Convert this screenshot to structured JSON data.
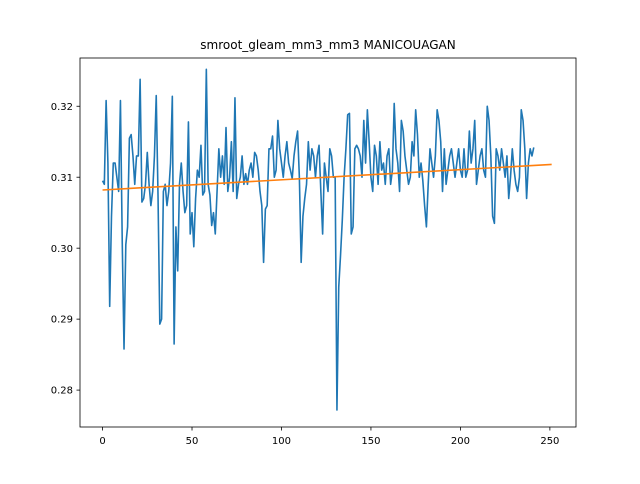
{
  "chart_data": {
    "type": "line",
    "title": "smroot_gleam_mm3_mm3 MANICOUAGAN",
    "xlabel": "",
    "ylabel": "",
    "xlim": [
      -12.6,
      264.6
    ],
    "ylim": [
      0.2748,
      0.3268
    ],
    "x_ticks": [
      0,
      50,
      100,
      150,
      200,
      250
    ],
    "x_tick_labels": [
      "0",
      "50",
      "100",
      "150",
      "200",
      "250"
    ],
    "y_ticks": [
      0.28,
      0.29,
      0.3,
      0.31,
      0.32
    ],
    "y_tick_labels": [
      "0.28",
      "0.29",
      "0.30",
      "0.31",
      "0.32"
    ],
    "grid": false,
    "series": [
      {
        "color": "#1f77b4",
        "x_start": 0,
        "x_step": 1,
        "values": [
          0.3095,
          0.309,
          0.3208,
          0.312,
          0.2918,
          0.3045,
          0.312,
          0.312,
          0.31,
          0.308,
          0.3208,
          0.301,
          0.2858,
          0.3005,
          0.303,
          0.3155,
          0.316,
          0.313,
          0.309,
          0.313,
          0.313,
          0.3238,
          0.3065,
          0.307,
          0.309,
          0.3135,
          0.309,
          0.306,
          0.308,
          0.313,
          0.3215,
          0.3075,
          0.2893,
          0.29,
          0.308,
          0.309,
          0.306,
          0.308,
          0.312,
          0.3214,
          0.2865,
          0.303,
          0.2968,
          0.309,
          0.312,
          0.308,
          0.305,
          0.306,
          0.3178,
          0.302,
          0.305,
          0.3002,
          0.307,
          0.311,
          0.31,
          0.3145,
          0.3075,
          0.308,
          0.3252,
          0.309,
          0.3075,
          0.3032,
          0.305,
          0.302,
          0.308,
          0.314,
          0.31,
          0.313,
          0.309,
          0.317,
          0.308,
          0.31,
          0.315,
          0.308,
          0.3212,
          0.307,
          0.309,
          0.31,
          0.313,
          0.309,
          0.3105,
          0.309,
          0.311,
          0.312,
          0.31,
          0.3135,
          0.313,
          0.311,
          0.308,
          0.306,
          0.298,
          0.3055,
          0.306,
          0.314,
          0.314,
          0.3158,
          0.31,
          0.311,
          0.318,
          0.314,
          0.312,
          0.31,
          0.313,
          0.315,
          0.312,
          0.311,
          0.3098,
          0.313,
          0.315,
          0.3165,
          0.31,
          0.298,
          0.3045,
          0.307,
          0.309,
          0.315,
          0.311,
          0.314,
          0.313,
          0.31,
          0.313,
          0.3145,
          0.308,
          0.302,
          0.312,
          0.31,
          0.308,
          0.314,
          0.313,
          0.31,
          0.31,
          0.2772,
          0.2945,
          0.299,
          0.304,
          0.31,
          0.314,
          0.3188,
          0.319,
          0.302,
          0.303,
          0.314,
          0.3145,
          0.314,
          0.313,
          0.31,
          0.318,
          0.312,
          0.3195,
          0.315,
          0.31,
          0.308,
          0.3145,
          0.313,
          0.309,
          0.315,
          0.311,
          0.312,
          0.309,
          0.313,
          0.314,
          0.309,
          0.311,
          0.3204,
          0.314,
          0.312,
          0.308,
          0.318,
          0.3165,
          0.313,
          0.311,
          0.309,
          0.31,
          0.315,
          0.313,
          0.3195,
          0.316,
          0.31,
          0.312,
          0.3095,
          0.306,
          0.303,
          0.309,
          0.314,
          0.312,
          0.31,
          0.313,
          0.3195,
          0.318,
          0.315,
          0.308,
          0.314,
          0.309,
          0.311,
          0.313,
          0.314,
          0.312,
          0.31,
          0.312,
          0.314,
          0.311,
          0.31,
          0.314,
          0.31,
          0.311,
          0.3165,
          0.312,
          0.314,
          0.318,
          0.309,
          0.311,
          0.313,
          0.314,
          0.311,
          0.31,
          0.32,
          0.318,
          0.313,
          0.3045,
          0.3035,
          0.314,
          0.313,
          0.311,
          0.314,
          0.312,
          0.31,
          0.313,
          0.307,
          0.31,
          0.314,
          0.311,
          0.309,
          0.308,
          0.31,
          0.3195,
          0.318,
          0.314,
          0.307,
          0.312,
          0.314,
          0.313,
          0.3142
        ]
      },
      {
        "color": "#ff7f0e",
        "x": [
          0,
          251
        ],
        "values": [
          0.3082,
          0.3118
        ]
      }
    ]
  }
}
